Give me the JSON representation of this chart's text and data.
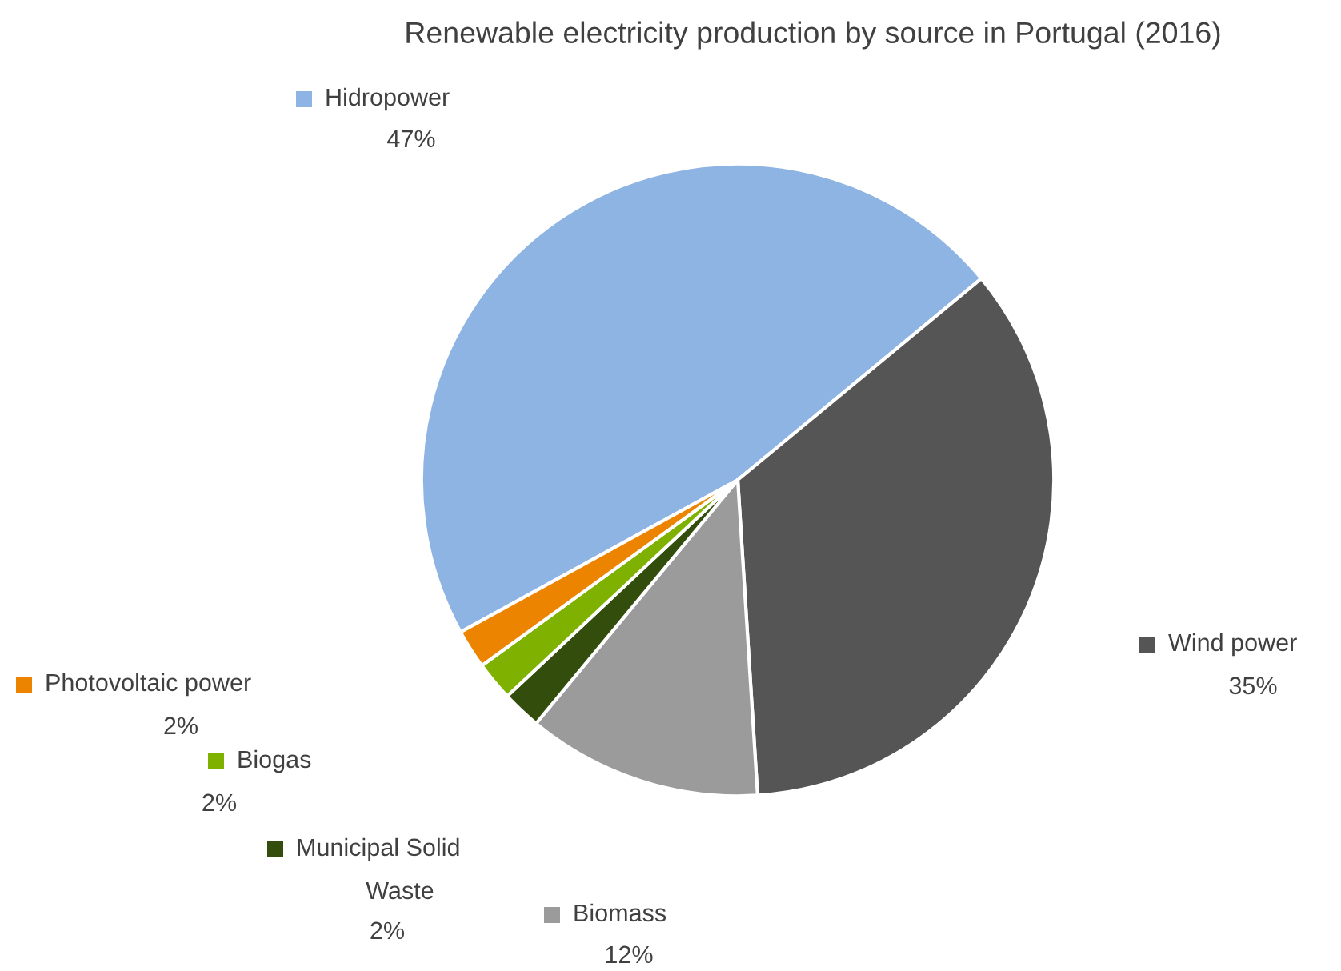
{
  "chart_data": {
    "type": "pie",
    "title": "Renewable electricity production by source in Portugal (2016)",
    "categories": [
      "Hidropower",
      "Wind power",
      "Biomass",
      "Municipal Solid Waste",
      "Biogas",
      "Photovoltaic power"
    ],
    "values": [
      47,
      35,
      12,
      2,
      2,
      2
    ],
    "value_labels": [
      "47%",
      "35%",
      "12%",
      "2%",
      "2%",
      "2%"
    ],
    "colors": [
      "#8eb4e3",
      "#555555",
      "#9b9b9b",
      "#334d0d",
      "#7fb200",
      "#ec8400"
    ],
    "legend": "left"
  }
}
